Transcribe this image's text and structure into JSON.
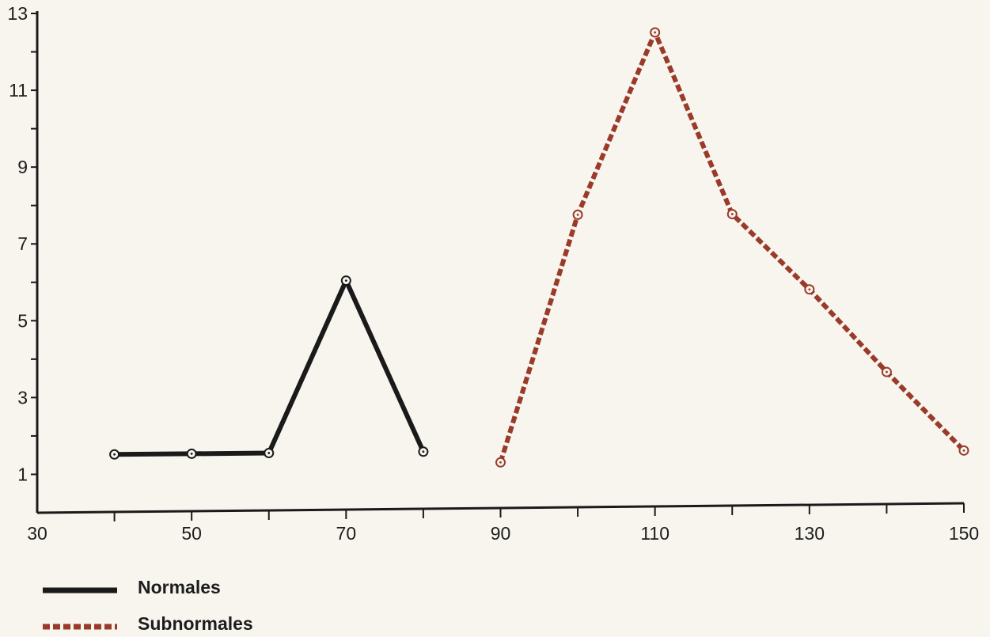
{
  "chart_data": {
    "type": "line",
    "x_ticks": [
      30,
      50,
      70,
      90,
      110,
      130,
      150
    ],
    "y_ticks": [
      1,
      3,
      5,
      7,
      9,
      11,
      13
    ],
    "xlim": [
      30,
      150
    ],
    "ylim": [
      0,
      13
    ],
    "grid": false,
    "legend_position": "bottom-left",
    "series": [
      {
        "name": "Normales",
        "color": "#1a1a1a",
        "style": "solid",
        "points": [
          {
            "x": 40,
            "y": 1.5
          },
          {
            "x": 50,
            "y": 1.5
          },
          {
            "x": 60,
            "y": 1.5
          },
          {
            "x": 70,
            "y": 6.0
          },
          {
            "x": 80,
            "y": 1.5
          }
        ]
      },
      {
        "name": "Subnormales",
        "color": "#9a3b2a",
        "style": "dashed",
        "points": [
          {
            "x": 90,
            "y": 1.2
          },
          {
            "x": 100,
            "y": 7.7
          },
          {
            "x": 110,
            "y": 12.5
          },
          {
            "x": 120,
            "y": 7.7
          },
          {
            "x": 130,
            "y": 5.7
          },
          {
            "x": 140,
            "y": 3.5
          },
          {
            "x": 150,
            "y": 1.4
          }
        ]
      }
    ]
  }
}
